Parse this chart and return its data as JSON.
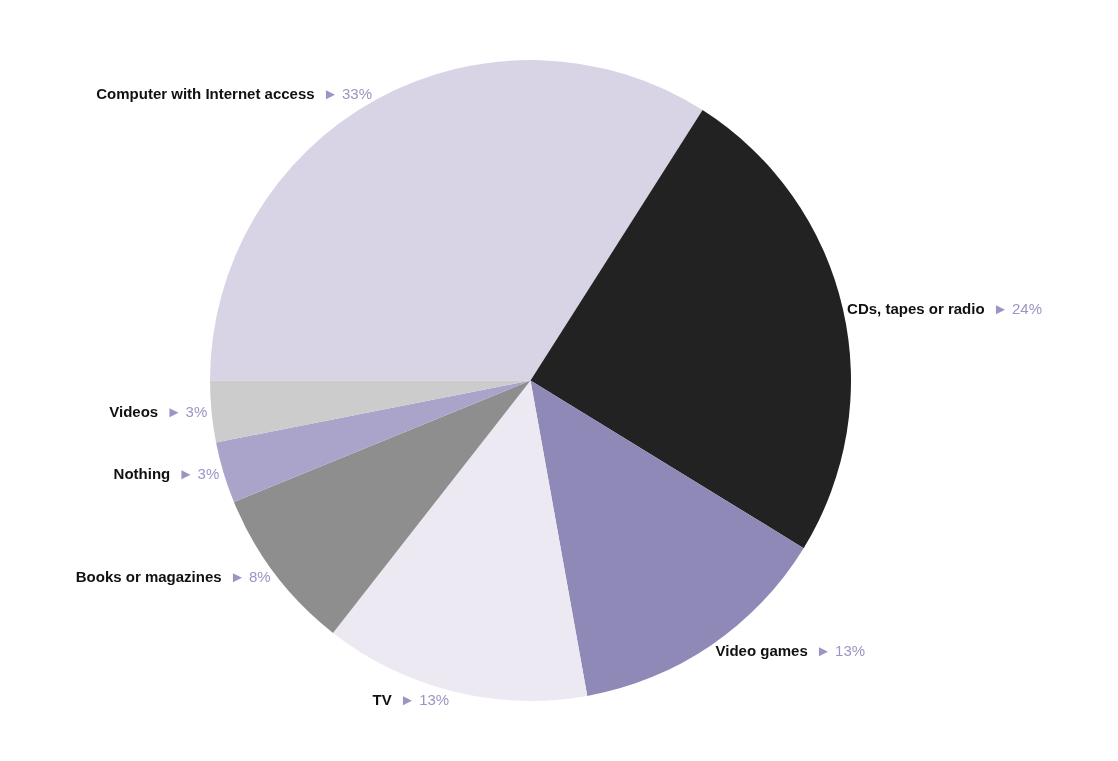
{
  "chart_data": {
    "type": "pie",
    "categories": [
      "Computer with Internet access",
      "CDs, tapes or radio",
      "Video games",
      "TV",
      "Books or magazines",
      "Nothing",
      "Videos"
    ],
    "values": [
      33,
      24,
      13,
      13,
      8,
      3,
      3
    ],
    "value_labels": [
      "► 33%",
      "► 24%",
      "► 13%",
      "► 13%",
      "► 8%",
      "► 3%",
      "► 3%"
    ],
    "colors": [
      "#d8d3e5",
      "#222222",
      "#8f89b8",
      "#ece9f3",
      "#8e8e8e",
      "#aaa4cb",
      "#cccccc"
    ],
    "legend": false
  }
}
